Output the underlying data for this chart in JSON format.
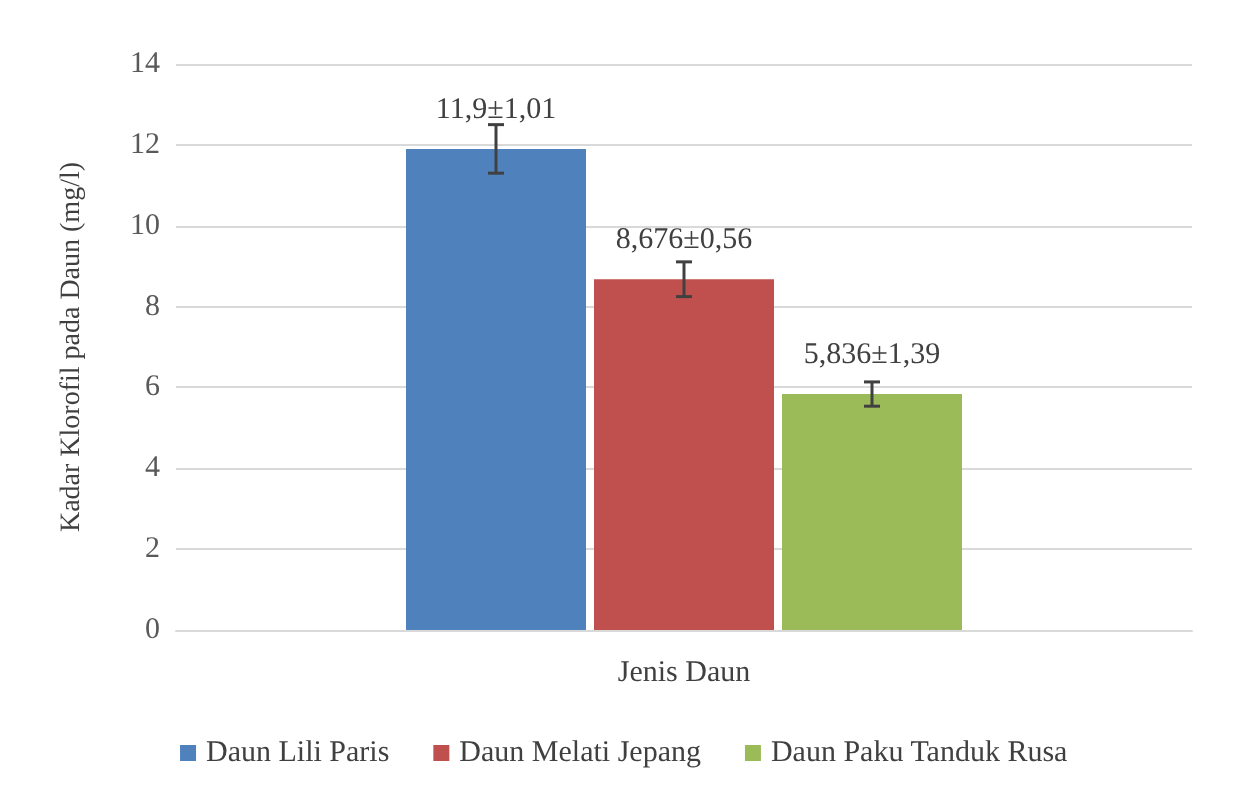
{
  "chart_data": {
    "type": "bar",
    "ylabel": "Kadar Klorofil pada Daun (mg/l)",
    "categories": [
      "Jenis Daun"
    ],
    "series": [
      {
        "name": "Daun Lili Paris",
        "color": "#4f81bd",
        "values": [
          11.9
        ],
        "errors": [
          0.6
        ],
        "value_labels": [
          "11,9±1,01"
        ]
      },
      {
        "name": "Daun Melati Jepang",
        "color": "#c0504d",
        "values": [
          8.676
        ],
        "errors": [
          0.43
        ],
        "value_labels": [
          "8,676±0,56"
        ]
      },
      {
        "name": "Daun Paku Tanduk Rusa",
        "color": "#9bbb59",
        "values": [
          5.836
        ],
        "errors": [
          0.3
        ],
        "value_labels": [
          "5,836±1,39"
        ]
      }
    ],
    "ylim": [
      0,
      14
    ],
    "yticks": [
      0,
      2,
      4,
      6,
      8,
      10,
      12,
      14
    ],
    "grid": "y",
    "legend": "bottom"
  }
}
